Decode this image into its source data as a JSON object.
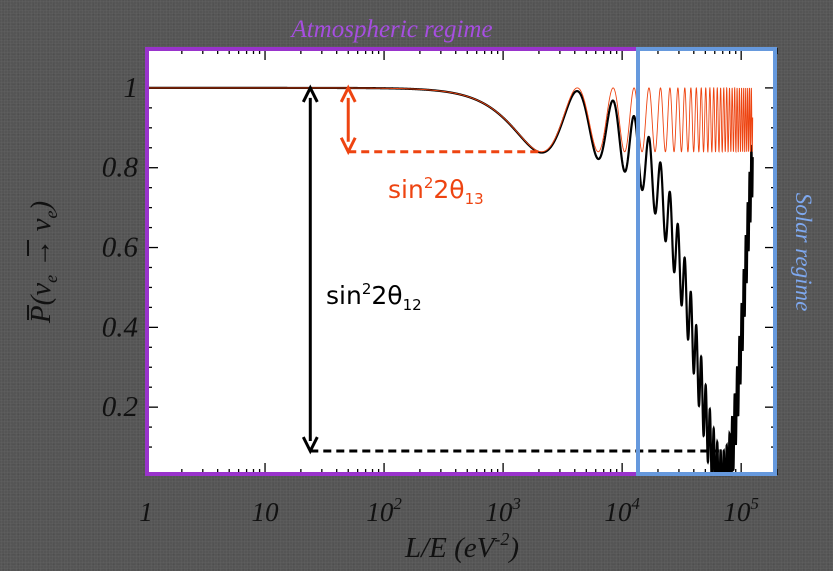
{
  "chart_data": {
    "type": "line",
    "xlabel": "L/E (eV",
    "xlabel_exp": "-2",
    "xlabel_close": ")",
    "ylabel": "P(ν_e → ν_e)",
    "x_scale": "log",
    "xlim": [
      1,
      200000
    ],
    "ylim": [
      0.03,
      1.1
    ],
    "x_ticks": [
      {
        "value": 1,
        "base": "1",
        "exp": ""
      },
      {
        "value": 10,
        "base": "10",
        "exp": ""
      },
      {
        "value": 100,
        "base": "10",
        "exp": "2"
      },
      {
        "value": 1000,
        "base": "10",
        "exp": "3"
      },
      {
        "value": 10000,
        "base": "10",
        "exp": "4"
      },
      {
        "value": 100000,
        "base": "10",
        "exp": "5"
      }
    ],
    "y_ticks": [
      {
        "value": 1,
        "label": "1"
      },
      {
        "value": 0.8,
        "label": "0.8"
      },
      {
        "value": 0.6,
        "label": "0.6"
      },
      {
        "value": 0.4,
        "label": "0.4"
      },
      {
        "value": 0.2,
        "label": "0.2"
      }
    ],
    "series": [
      {
        "style": "black thick",
        "sin2_2theta13": 0.16,
        "sin2_2theta12": 0.91,
        "atm_osc_L_over_E": 4200,
        "sol_osc_L_over_E": 140000
      },
      {
        "style": "red thin",
        "sin2_2theta13": 0.16,
        "atm_osc_L_over_E": 4200
      }
    ],
    "regions": [
      {
        "label": "Atmospheric regime",
        "x_range": [
          1,
          11000
        ],
        "color": "#9933cc"
      },
      {
        "label": "Solar regime",
        "x_range": [
          11000,
          160000
        ],
        "color": "#6699dd"
      }
    ],
    "annotations": [
      {
        "label": "sin",
        "sup": "2",
        "rest": "2θ",
        "sub": "13",
        "color": "#ee4411",
        "x": 50,
        "y_from": 1,
        "y_to": 0.84
      },
      {
        "label": "sin",
        "sup": "2",
        "rest": "2θ",
        "sub": "12",
        "color": "#000000",
        "x": 24,
        "y_from": 1,
        "y_to": 0.09
      }
    ],
    "dashed_levels": [
      {
        "y": 0.84,
        "x_from": 50,
        "x_to": 2000,
        "color": "#ee4411"
      },
      {
        "y": 0.09,
        "x_from": 24,
        "x_to": 65000,
        "color": "#000000"
      }
    ],
    "colors": {
      "plot_bg": "#ffffff",
      "background": "#555555",
      "atm_box": "#9933cc",
      "sol_box": "#6699dd",
      "red": "#ee4411"
    }
  }
}
